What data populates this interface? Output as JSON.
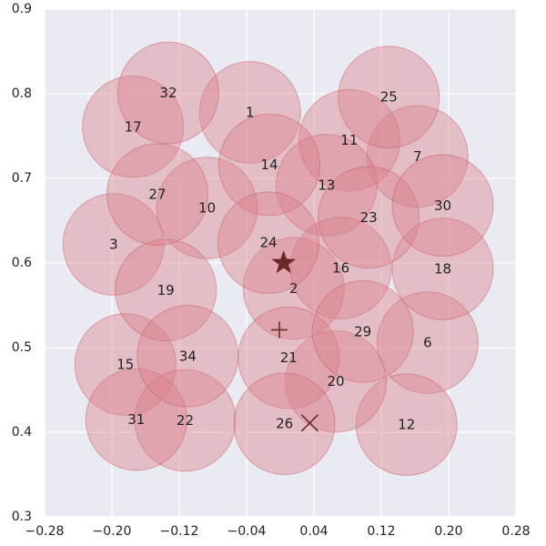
{
  "chart_data": {
    "type": "scatter",
    "title": "",
    "xlabel": "",
    "ylabel": "",
    "xlim": [
      -0.28,
      0.28
    ],
    "ylim": [
      0.3,
      0.9
    ],
    "grid": true,
    "circle_radius": 0.06,
    "colors": {
      "background": "#eaeaf2",
      "grid": "#ffffff",
      "circle_fill": "#d9808a",
      "circle_stroke": "#c85060",
      "marker": "#6b2828"
    },
    "x_ticks": [
      {
        "value": -0.28,
        "label": "−0.28"
      },
      {
        "value": -0.2,
        "label": "−0.20"
      },
      {
        "value": -0.12,
        "label": "−0.12"
      },
      {
        "value": -0.04,
        "label": "−0.04"
      },
      {
        "value": 0.04,
        "label": "0.04"
      },
      {
        "value": 0.12,
        "label": "0.12"
      },
      {
        "value": 0.2,
        "label": "0.20"
      },
      {
        "value": 0.28,
        "label": "0.28"
      }
    ],
    "y_ticks": [
      {
        "value": 0.3,
        "label": "0.3"
      },
      {
        "value": 0.4,
        "label": "0.4"
      },
      {
        "value": 0.5,
        "label": "0.5"
      },
      {
        "value": 0.6,
        "label": "0.6"
      },
      {
        "value": 0.7,
        "label": "0.7"
      },
      {
        "value": 0.8,
        "label": "0.8"
      },
      {
        "value": 0.9,
        "label": "0.9"
      }
    ],
    "points": [
      {
        "label": "1",
        "x": -0.036,
        "y": 0.778
      },
      {
        "label": "2",
        "x": 0.016,
        "y": 0.57
      },
      {
        "label": "3",
        "x": -0.198,
        "y": 0.622
      },
      {
        "label": "6",
        "x": 0.175,
        "y": 0.506
      },
      {
        "label": "7",
        "x": 0.163,
        "y": 0.726
      },
      {
        "label": "10",
        "x": -0.087,
        "y": 0.665
      },
      {
        "label": "11",
        "x": 0.082,
        "y": 0.745
      },
      {
        "label": "12",
        "x": 0.15,
        "y": 0.409
      },
      {
        "label": "13",
        "x": 0.055,
        "y": 0.692
      },
      {
        "label": "14",
        "x": -0.013,
        "y": 0.716
      },
      {
        "label": "15",
        "x": -0.184,
        "y": 0.48
      },
      {
        "label": "16",
        "x": 0.072,
        "y": 0.594
      },
      {
        "label": "17",
        "x": -0.175,
        "y": 0.761
      },
      {
        "label": "18",
        "x": 0.193,
        "y": 0.593
      },
      {
        "label": "19",
        "x": -0.136,
        "y": 0.568
      },
      {
        "label": "20",
        "x": 0.066,
        "y": 0.46
      },
      {
        "label": "21",
        "x": 0.01,
        "y": 0.488
      },
      {
        "label": "22",
        "x": -0.113,
        "y": 0.414
      },
      {
        "label": "23",
        "x": 0.105,
        "y": 0.654
      },
      {
        "label": "24",
        "x": -0.014,
        "y": 0.624
      },
      {
        "label": "25",
        "x": 0.129,
        "y": 0.796
      },
      {
        "label": "26",
        "x": 0.005,
        "y": 0.41
      },
      {
        "label": "27",
        "x": -0.146,
        "y": 0.681
      },
      {
        "label": "29",
        "x": 0.098,
        "y": 0.519
      },
      {
        "label": "30",
        "x": 0.193,
        "y": 0.668
      },
      {
        "label": "31",
        "x": -0.171,
        "y": 0.415
      },
      {
        "label": "32",
        "x": -0.133,
        "y": 0.801
      },
      {
        "label": "34",
        "x": -0.11,
        "y": 0.49
      }
    ],
    "markers": [
      {
        "shape": "star",
        "x": 0.004,
        "y": 0.6
      },
      {
        "shape": "plus",
        "x": -0.001,
        "y": 0.521
      },
      {
        "shape": "cross",
        "x": 0.035,
        "y": 0.411
      }
    ]
  }
}
